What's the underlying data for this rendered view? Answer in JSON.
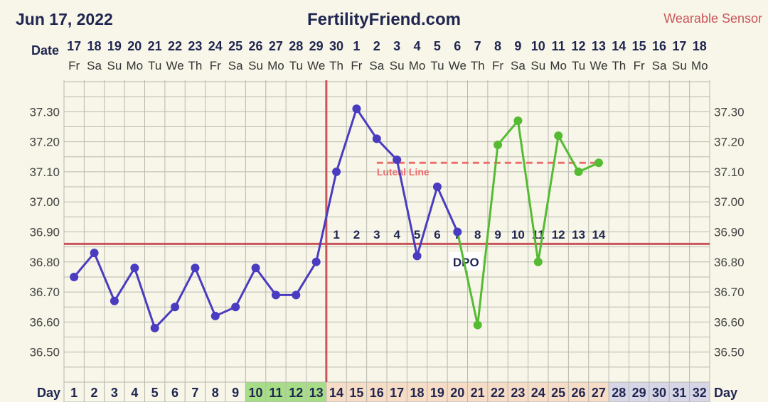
{
  "header": {
    "date": "Jun 17, 2022",
    "site": "FertilityFriend.com",
    "sensor": "Wearable Sensor"
  },
  "labels": {
    "date_row": "Date",
    "day_row": "Day",
    "dpo": "DPO",
    "luteal": "Luteal Line"
  },
  "colors": {
    "background": "#f7f6e8",
    "grid": "#b8b8b0",
    "pre_ovulation_line": "#4a3cc0",
    "post_ovulation_line": "#55bb33",
    "coverline": "#c9555a",
    "luteal_line": "#ec7070",
    "fertile_day_bg": "#a8dd88",
    "luteal_day_bg": "#f7dcc6",
    "future_day_bg": "#d6d6e6",
    "text": "#1f2550"
  },
  "chart_data": {
    "type": "line",
    "calendar_dates": [
      "17",
      "18",
      "19",
      "20",
      "21",
      "22",
      "23",
      "24",
      "25",
      "26",
      "27",
      "28",
      "29",
      "30",
      "1",
      "2",
      "3",
      "4",
      "5",
      "6",
      "7",
      "8",
      "9",
      "10",
      "11",
      "12",
      "13",
      "14",
      "15",
      "16",
      "17",
      "18"
    ],
    "weekdays": [
      "Fr",
      "Sa",
      "Su",
      "Mo",
      "Tu",
      "We",
      "Th",
      "Fr",
      "Sa",
      "Su",
      "Mo",
      "Tu",
      "We",
      "Th",
      "Fr",
      "Sa",
      "Su",
      "Mo",
      "Tu",
      "We",
      "Th",
      "Fr",
      "Sa",
      "Su",
      "Mo",
      "Tu",
      "We",
      "Th",
      "Fr",
      "Sa",
      "Su",
      "Mo"
    ],
    "cycle_days": [
      "1",
      "2",
      "3",
      "4",
      "5",
      "6",
      "7",
      "8",
      "9",
      "10",
      "11",
      "12",
      "13",
      "14",
      "15",
      "16",
      "17",
      "18",
      "19",
      "20",
      "21",
      "22",
      "23",
      "24",
      "25",
      "26",
      "27",
      "28",
      "29",
      "30",
      "31",
      "32"
    ],
    "y_ticks": [
      "37.30",
      "37.20",
      "37.10",
      "37.00",
      "36.90",
      "36.80",
      "36.70",
      "36.60",
      "36.50"
    ],
    "ylim": [
      36.4,
      37.4
    ],
    "series": [
      {
        "values": [
          36.75,
          36.83,
          36.67,
          36.78,
          36.58,
          36.65,
          36.78,
          36.62,
          36.65,
          36.78,
          36.69,
          36.69,
          36.8,
          37.1,
          37.31,
          37.21,
          37.14,
          36.82,
          37.05,
          36.9
        ]
      },
      {
        "values": [
          null,
          null,
          null,
          null,
          null,
          null,
          null,
          null,
          null,
          null,
          null,
          null,
          null,
          null,
          null,
          null,
          null,
          null,
          null,
          36.9,
          36.59,
          37.19,
          37.27,
          36.8,
          37.22,
          37.1,
          37.13
        ]
      }
    ],
    "coverline": 36.86,
    "luteal_line": {
      "value": 37.13,
      "from_day": 16,
      "to_day": 27
    },
    "ovulation_day": 13,
    "dpo_labels": [
      "1",
      "2",
      "3",
      "4",
      "5",
      "6",
      "7",
      "8",
      "9",
      "10",
      "11",
      "12",
      "13",
      "14"
    ],
    "dpo_start_day": 14,
    "fertile_days": [
      10,
      11,
      12,
      13
    ],
    "luteal_days_range": [
      14,
      27
    ],
    "future_days_range": [
      28,
      32
    ],
    "grid": true
  }
}
